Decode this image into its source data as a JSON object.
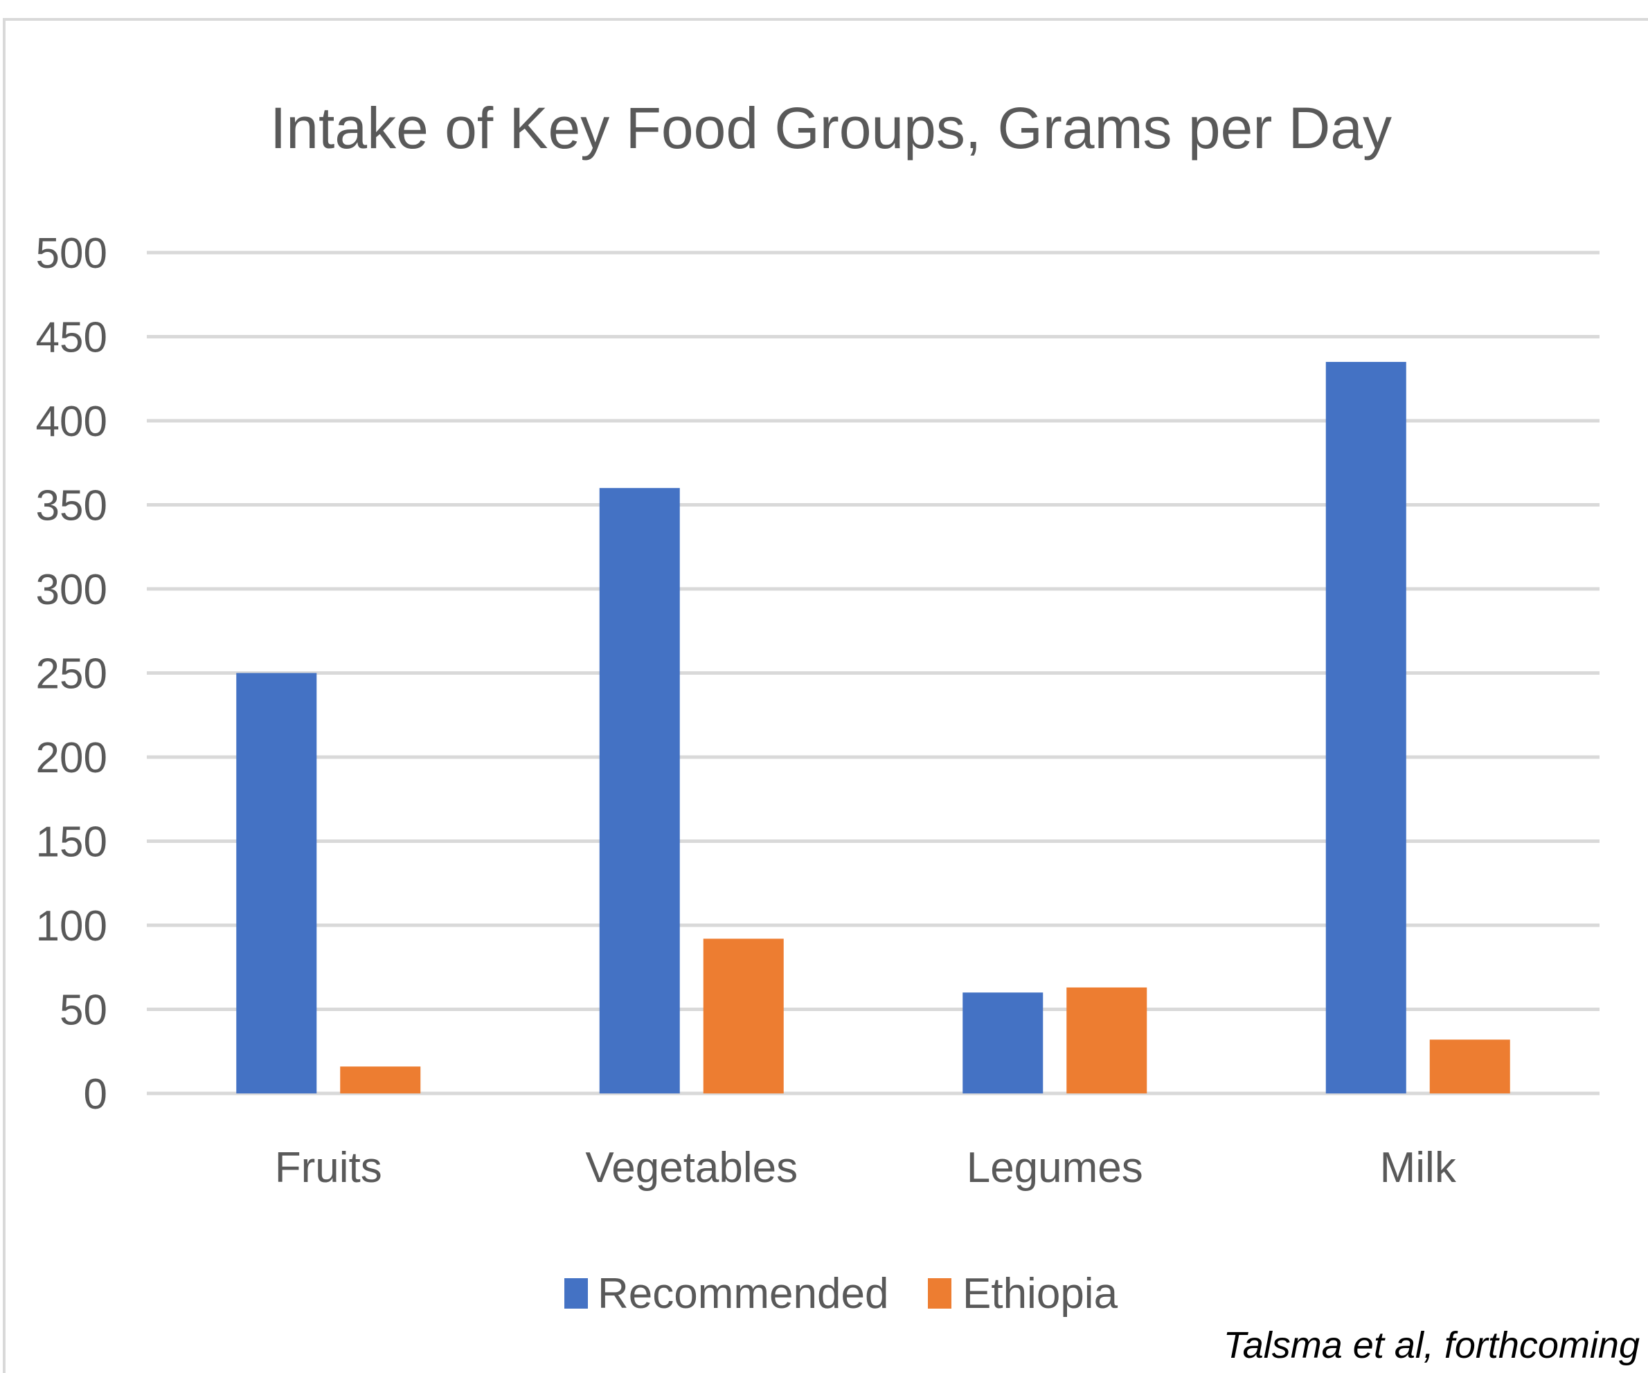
{
  "chart_data": {
    "type": "bar",
    "title": "Intake of Key Food Groups, Grams per Day",
    "categories": [
      "Fruits",
      "Vegetables",
      "Legumes",
      "Milk"
    ],
    "series": [
      {
        "name": "Recommended",
        "values": [
          250,
          360,
          60,
          435
        ],
        "color": "#4472C4"
      },
      {
        "name": "Ethiopia",
        "values": [
          16,
          92,
          63,
          32
        ],
        "color": "#ED7D31"
      }
    ],
    "y_ticks": [
      "0",
      "50",
      "100",
      "150",
      "200",
      "250",
      "300",
      "350",
      "400",
      "450",
      "500"
    ],
    "ylim": [
      0,
      500
    ],
    "grid": true,
    "legend_position": "bottom",
    "gridline_color": "#d9d9d9",
    "text_color": "#595959",
    "frame_color": "#d9d9d9"
  },
  "citation": "Talsma et al, forthcoming"
}
